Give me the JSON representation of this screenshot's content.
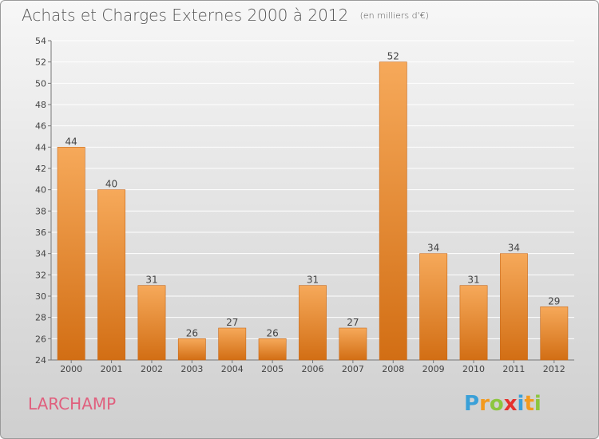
{
  "title": "Achats et Charges Externes 2000 à 2012",
  "unit_note": "(en milliers d'€)",
  "place_name": "LARCHAMP",
  "logo": {
    "letters": [
      "P",
      "r",
      "o",
      "x",
      "i",
      "t",
      "i"
    ],
    "colors": [
      "#3aa0d8",
      "#f39a1e",
      "#8cc63f",
      "#e5322d",
      "#3aa0d8",
      "#f39a1e",
      "#8cc63f"
    ]
  },
  "colors": {
    "bar_top": "#f6a95a",
    "bar_bottom": "#d26e14",
    "bar_edge": "#c86a1c",
    "grid": "#ffffff",
    "title": "#555555",
    "place": "#e0607e"
  },
  "chart_data": {
    "type": "bar",
    "categories": [
      "2000",
      "2001",
      "2002",
      "2003",
      "2004",
      "2005",
      "2006",
      "2007",
      "2008",
      "2009",
      "2010",
      "2011",
      "2012"
    ],
    "values": [
      44,
      40,
      31,
      26,
      27,
      26,
      31,
      27,
      52,
      34,
      31,
      34,
      29
    ],
    "ylim": [
      24,
      54
    ],
    "yticks": [
      24,
      26,
      28,
      30,
      32,
      34,
      36,
      38,
      40,
      42,
      44,
      46,
      48,
      50,
      52,
      54
    ],
    "grid": true,
    "xlabel": "",
    "ylabel": ""
  }
}
